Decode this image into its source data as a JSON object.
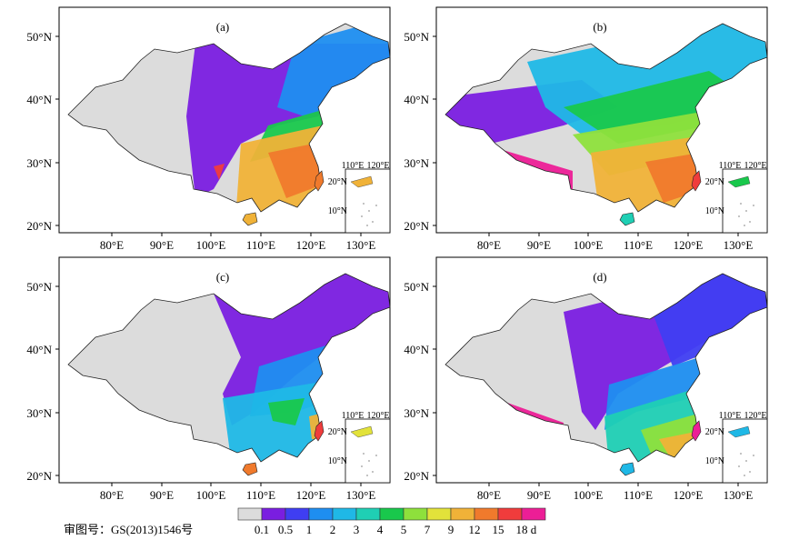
{
  "panels": [
    {
      "label": "(a)",
      "lat_ticks": [
        "50°N",
        "40°N",
        "30°N",
        "20°N"
      ],
      "lon_ticks": [
        "80°E",
        "90°E",
        "100°E",
        "110°E",
        "120°E",
        "130°E"
      ],
      "inset": {
        "lon_ticks": [
          "110°E",
          "120°E"
        ],
        "lat_ticks": [
          "20°N",
          "10°N"
        ]
      }
    },
    {
      "label": "(b)",
      "lat_ticks": [
        "50°N",
        "40°N",
        "30°N",
        "20°N"
      ],
      "lon_ticks": [
        "80°E",
        "90°E",
        "100°E",
        "110°E",
        "120°E",
        "130°E"
      ],
      "inset": {
        "lon_ticks": [
          "110°E",
          "120°E"
        ],
        "lat_ticks": [
          "20°N",
          "10°N"
        ]
      }
    },
    {
      "label": "(c)",
      "lat_ticks": [
        "50°N",
        "40°N",
        "30°N",
        "20°N"
      ],
      "lon_ticks": [
        "80°E",
        "90°E",
        "100°E",
        "110°E",
        "120°E",
        "130°E"
      ],
      "inset": {
        "lon_ticks": [
          "110°E",
          "120°E"
        ],
        "lat_ticks": [
          "20°N",
          "10°N"
        ]
      }
    },
    {
      "label": "(d)",
      "lat_ticks": [
        "50°N",
        "40°N",
        "30°N",
        "20°N"
      ],
      "lon_ticks": [
        "80°E",
        "90°E",
        "100°E",
        "110°E",
        "120°E",
        "130°E"
      ],
      "inset": {
        "lon_ticks": [
          "110°E",
          "120°E"
        ],
        "lat_ticks": [
          "20°N",
          "10°N"
        ]
      }
    }
  ],
  "colorbar": {
    "colors": [
      "#dcdcdc",
      "#7a1ee0",
      "#3f3ef2",
      "#1e8ef0",
      "#1fb8e6",
      "#1fcfb4",
      "#19c84c",
      "#8ee03c",
      "#e2e23a",
      "#f0b238",
      "#f07a2c",
      "#f03c3c",
      "#ec1e96"
    ],
    "labels": [
      "0.1",
      "0.5",
      "1",
      "2",
      "3",
      "4",
      "5",
      "7",
      "9",
      "12",
      "15",
      "18",
      "d"
    ]
  },
  "footer": {
    "map_no": "审图号：GS(2013)1546号"
  }
}
